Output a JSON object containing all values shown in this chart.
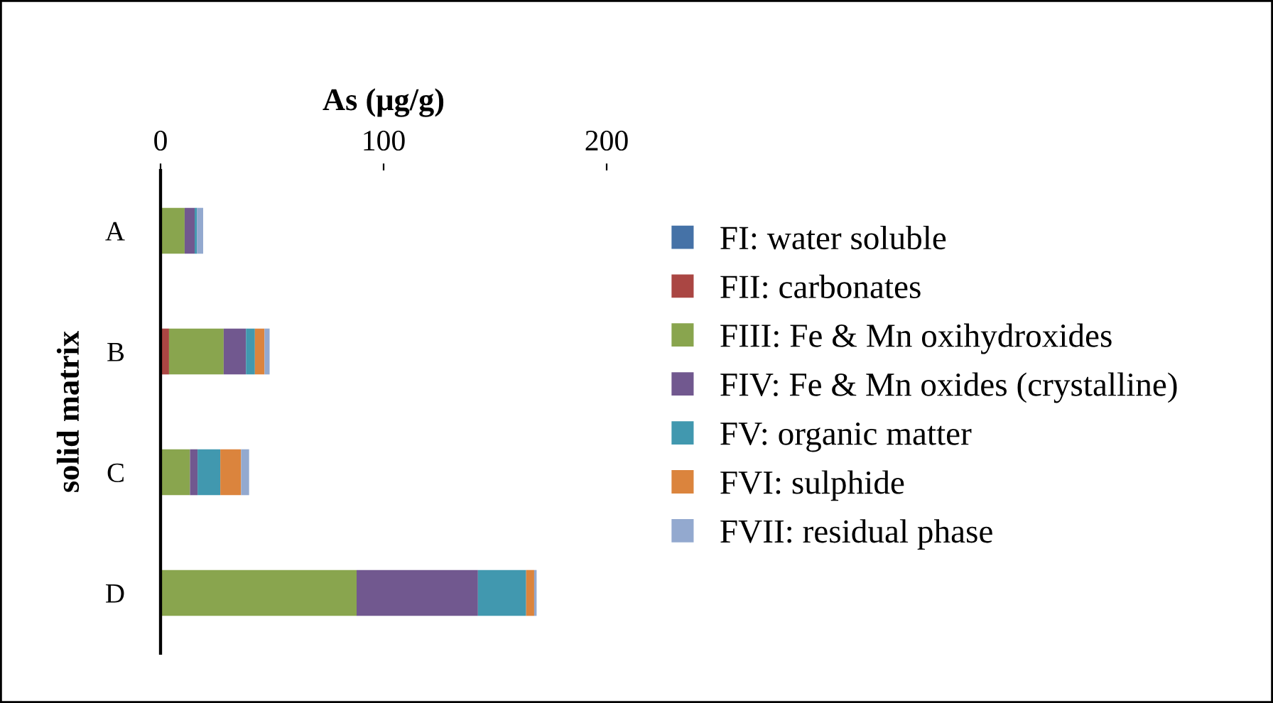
{
  "chart_data": {
    "type": "bar",
    "orientation": "horizontal",
    "stacked": true,
    "xlabel": "As (μg/g)",
    "ylabel": "solid matrix",
    "categories": [
      "A",
      "B",
      "C",
      "D"
    ],
    "xlim": [
      0,
      200
    ],
    "xticks": [
      0,
      100,
      200
    ],
    "grid": false,
    "legend": "right",
    "series": [
      {
        "name": "FI: water soluble",
        "color": "#4572a7",
        "values": [
          0,
          0,
          0,
          0
        ]
      },
      {
        "name": "FII: carbonates",
        "color": "#aa4643",
        "values": [
          0,
          3.8,
          0,
          0
        ]
      },
      {
        "name": "FIII: Fe & Mn oxihydroxides",
        "color": "#89a54e",
        "values": [
          10.8,
          24.5,
          13.2,
          87.9
        ]
      },
      {
        "name": "FIV: Fe & Mn oxides (crystalline)",
        "color": "#71588f",
        "values": [
          4.5,
          10,
          3.4,
          54.4
        ]
      },
      {
        "name": "FV: organic matter",
        "color": "#4198af",
        "values": [
          1,
          4,
          10.2,
          21.6
        ]
      },
      {
        "name": "FVI: sulphide",
        "color": "#db843d",
        "values": [
          0,
          4.3,
          9.3,
          3.6
        ]
      },
      {
        "name": "FVII: residual phase",
        "color": "#93a9cf",
        "values": [
          2.8,
          2.3,
          3.6,
          1.1
        ]
      }
    ]
  }
}
